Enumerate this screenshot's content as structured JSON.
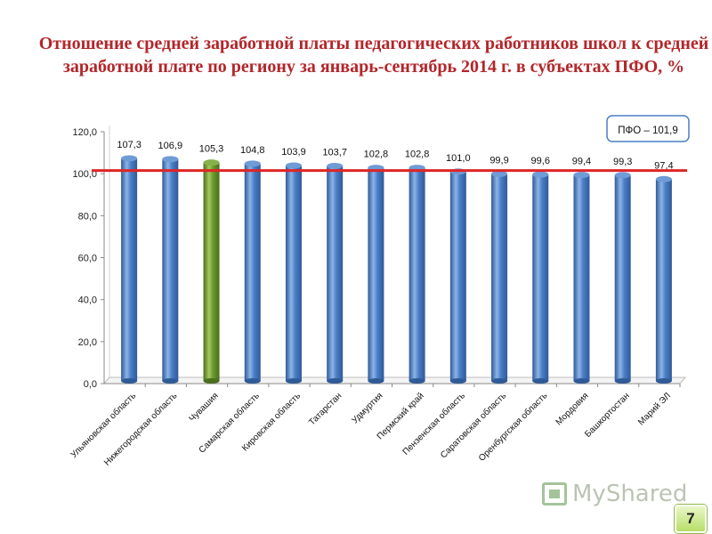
{
  "title": "Отношение средней заработной платы педагогических работников школ к средней заработной плате по региону за январь-сентябрь 2014 г. в субъектах ПФО, %",
  "page_number": "7",
  "watermark": "MyShared",
  "colors": {
    "bar": "#4a7ec6",
    "bar_highlight": "#6b9a2e",
    "reference_line": "#e02424",
    "title": "#b3262a"
  },
  "chart_data": {
    "type": "bar",
    "categories": [
      "Ульяновская область",
      "Нижегородская область",
      "Чувашия",
      "Самарская область",
      "Кировская область",
      "Татарстан",
      "Удмуртия",
      "Пермский край",
      "Пензенская область",
      "Саратовская область",
      "Оренбургская область",
      "Мордовия",
      "Башкортостан",
      "Марий ЭЛ"
    ],
    "values": [
      107.3,
      106.9,
      105.3,
      104.8,
      103.9,
      103.7,
      102.8,
      102.8,
      101.0,
      99.9,
      99.6,
      99.4,
      99.3,
      97.4
    ],
    "value_labels": [
      "107,3",
      "106,9",
      "105,3",
      "104,8",
      "103,9",
      "103,7",
      "102,8",
      "102,8",
      "101,0",
      "99,9",
      "99,6",
      "99,4",
      "99,3",
      "97,4"
    ],
    "highlight_index": 2,
    "ylim": [
      0,
      120
    ],
    "yticks": [
      "0,0",
      "20,0",
      "40,0",
      "60,0",
      "80,0",
      "100,0",
      "120,0"
    ],
    "reference": {
      "value": 101.9,
      "label": "ПФО – 101,9"
    },
    "grid": false,
    "style": "3d-cylinder"
  }
}
